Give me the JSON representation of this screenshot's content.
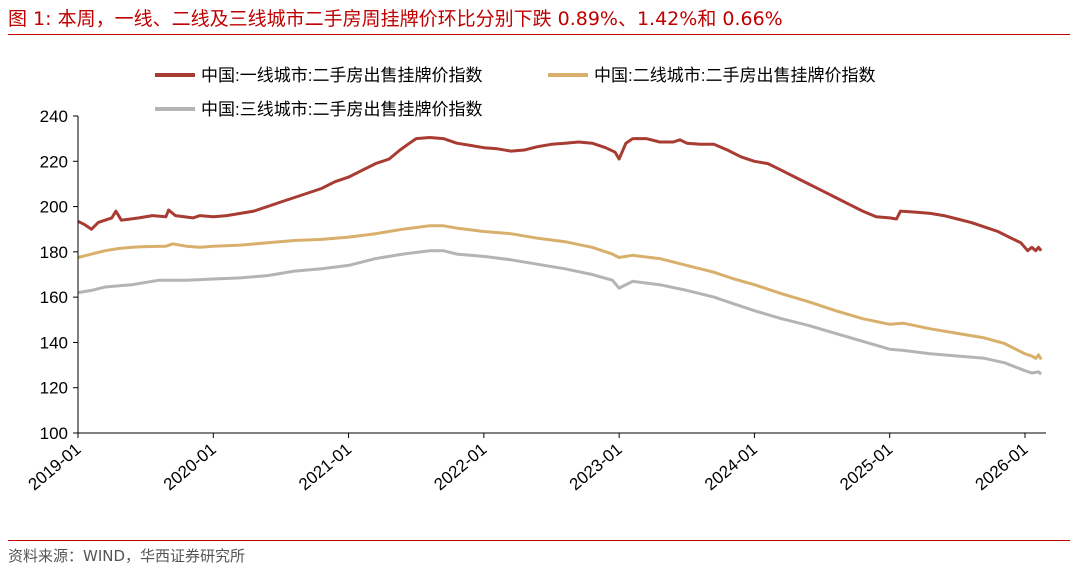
{
  "header": {
    "title": "图 1:  本周，一线、二线及三线城市二手房周挂牌价环比分别下跌 0.89%、1.42%和 0.66%"
  },
  "footer": {
    "source": "资料来源：WIND，华西证券研究所"
  },
  "colors": {
    "accent": "#C00000",
    "tier1": "#A83C33",
    "tier2": "#D9B06B",
    "tier3": "#B4B4B4",
    "axis": "#000000"
  },
  "chart_data": {
    "type": "line",
    "title": "",
    "xlabel": "",
    "ylabel": "",
    "ylim": [
      100,
      240
    ],
    "yticks": [
      100,
      120,
      140,
      160,
      180,
      200,
      220,
      240
    ],
    "xlim": [
      2019.0,
      2026.12
    ],
    "xticks": [
      {
        "value": 2019.0,
        "label": "2019-01"
      },
      {
        "value": 2020.0,
        "label": "2020-01"
      },
      {
        "value": 2021.0,
        "label": "2021-01"
      },
      {
        "value": 2022.0,
        "label": "2022-01"
      },
      {
        "value": 2023.0,
        "label": "2023-01"
      },
      {
        "value": 2024.0,
        "label": "2024-01"
      },
      {
        "value": 2025.0,
        "label": "2025-01"
      },
      {
        "value": 2026.0,
        "label": "2026-01"
      }
    ],
    "legend_position": "top",
    "series": [
      {
        "name": "中国:一线城市:二手房出售挂牌价指数",
        "color": "#A83C33",
        "points": [
          [
            2019.0,
            193.5
          ],
          [
            2019.05,
            192
          ],
          [
            2019.1,
            190
          ],
          [
            2019.15,
            193
          ],
          [
            2019.25,
            195
          ],
          [
            2019.28,
            198
          ],
          [
            2019.32,
            194
          ],
          [
            2019.45,
            195
          ],
          [
            2019.55,
            196
          ],
          [
            2019.65,
            195.5
          ],
          [
            2019.67,
            198.5
          ],
          [
            2019.72,
            196
          ],
          [
            2019.85,
            195
          ],
          [
            2019.9,
            196
          ],
          [
            2020.0,
            195.5
          ],
          [
            2020.1,
            196
          ],
          [
            2020.2,
            197
          ],
          [
            2020.3,
            198
          ],
          [
            2020.4,
            200
          ],
          [
            2020.5,
            202
          ],
          [
            2020.6,
            204
          ],
          [
            2020.7,
            206
          ],
          [
            2020.8,
            208
          ],
          [
            2020.9,
            211
          ],
          [
            2021.0,
            213
          ],
          [
            2021.1,
            216
          ],
          [
            2021.2,
            219
          ],
          [
            2021.3,
            221
          ],
          [
            2021.38,
            225
          ],
          [
            2021.45,
            228
          ],
          [
            2021.5,
            230
          ],
          [
            2021.6,
            230.5
          ],
          [
            2021.7,
            230
          ],
          [
            2021.8,
            228
          ],
          [
            2021.9,
            227
          ],
          [
            2022.0,
            226
          ],
          [
            2022.1,
            225.5
          ],
          [
            2022.2,
            224.5
          ],
          [
            2022.3,
            225
          ],
          [
            2022.4,
            226.5
          ],
          [
            2022.5,
            227.5
          ],
          [
            2022.6,
            228
          ],
          [
            2022.7,
            228.5
          ],
          [
            2022.8,
            228
          ],
          [
            2022.9,
            226
          ],
          [
            2022.97,
            224
          ],
          [
            2023.0,
            221
          ],
          [
            2023.05,
            228
          ],
          [
            2023.1,
            230
          ],
          [
            2023.2,
            230
          ],
          [
            2023.3,
            228.5
          ],
          [
            2023.4,
            228.5
          ],
          [
            2023.45,
            229.5
          ],
          [
            2023.5,
            228
          ],
          [
            2023.6,
            227.5
          ],
          [
            2023.7,
            227.5
          ],
          [
            2023.8,
            225
          ],
          [
            2023.9,
            222
          ],
          [
            2024.0,
            220
          ],
          [
            2024.1,
            219
          ],
          [
            2024.2,
            216
          ],
          [
            2024.3,
            213
          ],
          [
            2024.4,
            210
          ],
          [
            2024.5,
            207
          ],
          [
            2024.6,
            204
          ],
          [
            2024.7,
            201
          ],
          [
            2024.8,
            198
          ],
          [
            2024.9,
            195.5
          ],
          [
            2025.0,
            195
          ],
          [
            2025.05,
            194.5
          ],
          [
            2025.08,
            198
          ],
          [
            2025.2,
            197.5
          ],
          [
            2025.3,
            197
          ],
          [
            2025.4,
            196
          ],
          [
            2025.5,
            194.5
          ],
          [
            2025.6,
            193
          ],
          [
            2025.7,
            191
          ],
          [
            2025.8,
            189
          ],
          [
            2025.9,
            186
          ],
          [
            2025.97,
            184
          ],
          [
            2026.02,
            180.5
          ],
          [
            2026.05,
            182
          ],
          [
            2026.08,
            180.5
          ],
          [
            2026.1,
            182
          ],
          [
            2026.12,
            180.5
          ]
        ]
      },
      {
        "name": "中国:二线城市:二手房出售挂牌价指数",
        "color": "#D9B06B",
        "points": [
          [
            2019.0,
            177.5
          ],
          [
            2019.1,
            179
          ],
          [
            2019.2,
            180.5
          ],
          [
            2019.3,
            181.5
          ],
          [
            2019.4,
            182
          ],
          [
            2019.5,
            182.3
          ],
          [
            2019.65,
            182.5
          ],
          [
            2019.7,
            183.5
          ],
          [
            2019.8,
            182.5
          ],
          [
            2019.9,
            182
          ],
          [
            2020.0,
            182.5
          ],
          [
            2020.2,
            183
          ],
          [
            2020.4,
            184
          ],
          [
            2020.6,
            185
          ],
          [
            2020.8,
            185.5
          ],
          [
            2021.0,
            186.5
          ],
          [
            2021.2,
            188
          ],
          [
            2021.4,
            190
          ],
          [
            2021.6,
            191.5
          ],
          [
            2021.7,
            191.5
          ],
          [
            2021.8,
            190.5
          ],
          [
            2022.0,
            189
          ],
          [
            2022.2,
            188
          ],
          [
            2022.4,
            186
          ],
          [
            2022.6,
            184.5
          ],
          [
            2022.8,
            182
          ],
          [
            2022.95,
            179
          ],
          [
            2023.0,
            177.5
          ],
          [
            2023.05,
            178
          ],
          [
            2023.1,
            178.5
          ],
          [
            2023.3,
            177
          ],
          [
            2023.5,
            174
          ],
          [
            2023.7,
            171
          ],
          [
            2023.85,
            168
          ],
          [
            2024.0,
            165.5
          ],
          [
            2024.2,
            161.5
          ],
          [
            2024.4,
            158
          ],
          [
            2024.6,
            154
          ],
          [
            2024.8,
            150.5
          ],
          [
            2025.0,
            148
          ],
          [
            2025.1,
            148.5
          ],
          [
            2025.3,
            146
          ],
          [
            2025.5,
            144
          ],
          [
            2025.7,
            142
          ],
          [
            2025.85,
            139.5
          ],
          [
            2026.0,
            135
          ],
          [
            2026.05,
            134
          ],
          [
            2026.08,
            133
          ],
          [
            2026.1,
            134.5
          ],
          [
            2026.12,
            132.5
          ]
        ]
      },
      {
        "name": "中国:三线城市:二手房出售挂牌价指数",
        "color": "#B4B4B4",
        "points": [
          [
            2019.0,
            162
          ],
          [
            2019.1,
            163
          ],
          [
            2019.2,
            164.5
          ],
          [
            2019.4,
            165.5
          ],
          [
            2019.6,
            167.5
          ],
          [
            2019.8,
            167.5
          ],
          [
            2020.0,
            168
          ],
          [
            2020.2,
            168.5
          ],
          [
            2020.4,
            169.5
          ],
          [
            2020.6,
            171.5
          ],
          [
            2020.8,
            172.5
          ],
          [
            2021.0,
            174
          ],
          [
            2021.2,
            177
          ],
          [
            2021.4,
            179
          ],
          [
            2021.6,
            180.5
          ],
          [
            2021.7,
            180.5
          ],
          [
            2021.8,
            179
          ],
          [
            2022.0,
            178
          ],
          [
            2022.2,
            176.5
          ],
          [
            2022.4,
            174.5
          ],
          [
            2022.6,
            172.5
          ],
          [
            2022.8,
            170
          ],
          [
            2022.95,
            167.5
          ],
          [
            2023.0,
            164
          ],
          [
            2023.05,
            165.5
          ],
          [
            2023.1,
            167
          ],
          [
            2023.3,
            165.5
          ],
          [
            2023.5,
            163
          ],
          [
            2023.7,
            160
          ],
          [
            2023.85,
            157
          ],
          [
            2024.0,
            154
          ],
          [
            2024.2,
            150.5
          ],
          [
            2024.4,
            147.5
          ],
          [
            2024.6,
            144
          ],
          [
            2024.8,
            140.5
          ],
          [
            2025.0,
            137
          ],
          [
            2025.1,
            136.5
          ],
          [
            2025.3,
            135
          ],
          [
            2025.5,
            134
          ],
          [
            2025.7,
            133
          ],
          [
            2025.85,
            131
          ],
          [
            2026.0,
            127.5
          ],
          [
            2026.05,
            126.5
          ],
          [
            2026.1,
            127
          ],
          [
            2026.12,
            126
          ]
        ]
      }
    ]
  }
}
